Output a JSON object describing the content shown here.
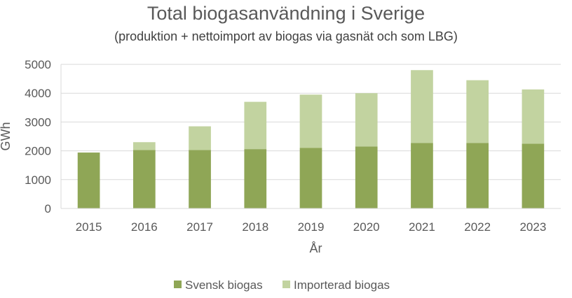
{
  "chart_data": {
    "type": "bar",
    "stacked": true,
    "title": "Total biogasanvändning i Sverige",
    "subtitle": "(produktion + nettoimport av biogas via gasnät och som LBG)",
    "xlabel": "År",
    "ylabel": "GWh",
    "ylim": [
      0,
      5000
    ],
    "yticks": [
      "0",
      "1000",
      "2000",
      "3000",
      "4000",
      "5000"
    ],
    "grid": true,
    "legend_position": "bottom",
    "categories": [
      "2015",
      "2016",
      "2017",
      "2018",
      "2019",
      "2020",
      "2021",
      "2022",
      "2023"
    ],
    "series": [
      {
        "name": "Svensk biogas",
        "color": "#8fa656",
        "values": [
          1940,
          2030,
          2030,
          2060,
          2100,
          2150,
          2270,
          2270,
          2250
        ]
      },
      {
        "name": "Importerad biogas",
        "color": "#c2d3a0",
        "values": [
          0,
          270,
          820,
          1640,
          1850,
          1850,
          2530,
          2180,
          1880
        ]
      }
    ]
  }
}
